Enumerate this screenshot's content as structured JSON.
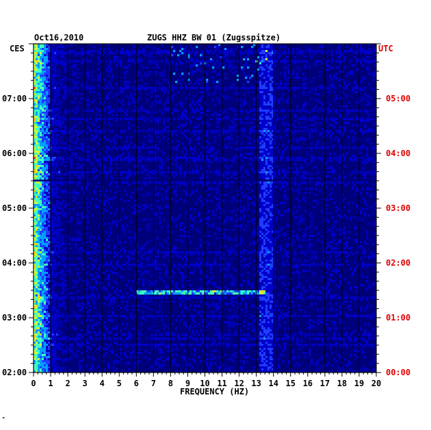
{
  "chart_data": {
    "type": "heatmap",
    "title": "ZUGS HHZ BW 01 (Zugsspitze)",
    "date_label": "Oct16,2010",
    "xlabel": "FREQUENCY (HZ)",
    "xlim": [
      0,
      20
    ],
    "x_ticks": [
      "0",
      "1",
      "2",
      "3",
      "4",
      "5",
      "6",
      "7",
      "8",
      "9",
      "10",
      "11",
      "12",
      "13",
      "14",
      "15",
      "16",
      "17",
      "18",
      "19",
      "20"
    ],
    "left_axis_label": "CES",
    "right_axis_label": "UTC",
    "left_ticks": [
      "07:00",
      "06:00",
      "05:00",
      "04:00",
      "03:00",
      "02:00"
    ],
    "right_ticks": [
      "05:00",
      "04:00",
      "03:00",
      "02:00",
      "01:00",
      "00:00"
    ],
    "time_range_ces": [
      "02:00",
      "08:00"
    ],
    "grid": true,
    "colormap": [
      "#00007a",
      "#0000c8",
      "#1e3cff",
      "#00a0ff",
      "#40ffc0",
      "#c8ff40",
      "#ffd200",
      "#ff3200"
    ],
    "label_colors": {
      "left": "#000000",
      "right": "#dd0000"
    },
    "features": [
      {
        "description": "strong low-frequency energy",
        "freq_hz": [
          0,
          1
        ]
      },
      {
        "description": "persistent band",
        "freq_hz": [
          13.2,
          14
        ]
      },
      {
        "description": "horizontal dark gap",
        "time_ces": "05:30"
      },
      {
        "description": "bright horizontal streak",
        "time_ces": "03:28",
        "freq_hz": [
          6,
          13.5
        ]
      }
    ]
  },
  "footer_mark": "ᴹ"
}
